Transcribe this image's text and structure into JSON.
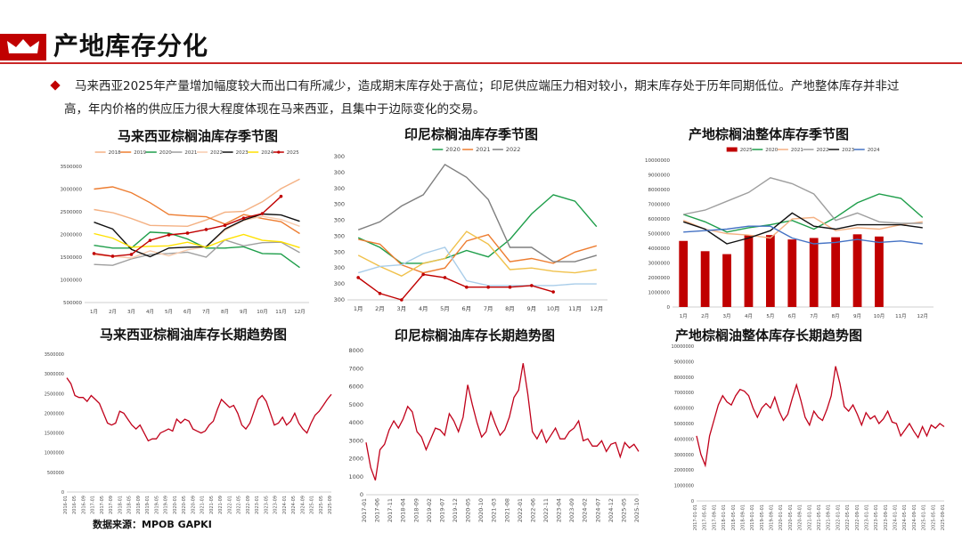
{
  "page": {
    "title": "产地库存分化",
    "summary": "马来西亚2025年产量增加幅度较大而出口有所减少，造成期末库存处于高位；印尼供应端压力相对较小，期末库存处于历年同期低位。产地整体库存并非过高，年内价格的供应压力很大程度体现在马来西亚，且集中于边际变化的交易。",
    "source": "数据来源：MPOB GAPKI"
  },
  "colors": {
    "accent": "#c00000"
  },
  "chart_data": [
    {
      "id": "my-season",
      "type": "line",
      "title": "马来西亚棕榈油库存季节图",
      "categories": [
        "1月",
        "2月",
        "3月",
        "4月",
        "5月",
        "6月",
        "7月",
        "8月",
        "9月",
        "10月",
        "11月",
        "12月"
      ],
      "yticks": [
        "500000",
        "1000000",
        "1500000",
        "2000000",
        "2500000",
        "3000000",
        "3500000"
      ],
      "ylim": [
        500000,
        3500000
      ],
      "legend": "top",
      "series": [
        {
          "name": "2018",
          "color": "#f4b183",
          "values": [
            2550000,
            2480000,
            2350000,
            2200000,
            2190000,
            2180000,
            2320000,
            2490000,
            2510000,
            2720000,
            3010000,
            3220000
          ]
        },
        {
          "name": "2019",
          "color": "#ed7d31",
          "values": [
            3000000,
            3050000,
            2920000,
            2700000,
            2440000,
            2410000,
            2390000,
            2230000,
            2440000,
            2350000,
            2280000,
            2020000
          ]
        },
        {
          "name": "2020",
          "color": "#1e9e4a",
          "values": [
            1760000,
            1700000,
            1700000,
            2050000,
            2030000,
            1900000,
            1700000,
            1700000,
            1730000,
            1580000,
            1570000,
            1270000
          ]
        },
        {
          "name": "2021",
          "color": "#9e9e9e",
          "values": [
            1340000,
            1320000,
            1460000,
            1560000,
            1580000,
            1610000,
            1500000,
            1880000,
            1750000,
            1820000,
            1830000,
            1600000
          ]
        },
        {
          "name": "2022",
          "color": "#f8cbad",
          "values": [
            1550000,
            1520000,
            1480000,
            1640000,
            1530000,
            1660000,
            1730000,
            2090000,
            2310000,
            2400000,
            2330000,
            2180000
          ]
        },
        {
          "name": "2023",
          "color": "#111111",
          "values": [
            2270000,
            2120000,
            1670000,
            1510000,
            1700000,
            1720000,
            1730000,
            2120000,
            2320000,
            2450000,
            2430000,
            2290000
          ]
        },
        {
          "name": "2024",
          "color": "#ffe100",
          "values": [
            2020000,
            1920000,
            1720000,
            1740000,
            1750000,
            1830000,
            1720000,
            1880000,
            2000000,
            1870000,
            1840000,
            1710000
          ]
        },
        {
          "name": "2025",
          "color": "#c00000",
          "marker": true,
          "values": [
            1580000,
            1520000,
            1560000,
            1870000,
            1990000,
            2030000,
            2110000,
            2200000,
            2360000,
            2460000,
            2840000,
            null
          ]
        }
      ]
    },
    {
      "id": "id-season",
      "type": "line",
      "title": "印尼棕榈油库存季节图",
      "categories": [
        "1月",
        "2月",
        "3月",
        "4月",
        "5月",
        "6月",
        "7月",
        "8月",
        "9月",
        "10月",
        "11月",
        "12月"
      ],
      "yticks": [
        "300",
        "300",
        "300",
        "300",
        "300",
        "300",
        "300",
        "300",
        "300",
        "300"
      ],
      "ylim": [
        0,
        9
      ],
      "legend": "top",
      "series": [
        {
          "name": "2020",
          "color": "#1e9e4a",
          "values": [
            3.9,
            3.3,
            2.3,
            2.3,
            2.6,
            3.1,
            2.7,
            3.8,
            5.4,
            6.6,
            6.2,
            4.6
          ]
        },
        {
          "name": "2021",
          "color": "#ed7d31",
          "values": [
            3.8,
            3.5,
            2.2,
            1.7,
            2.0,
            3.7,
            4.1,
            2.4,
            2.6,
            2.3,
            3.0,
            3.4
          ]
        },
        {
          "name": "2022",
          "color": "#7f7f7f",
          "values": [
            4.4,
            4.9,
            5.9,
            6.6,
            8.5,
            7.7,
            6.3,
            3.3,
            3.3,
            2.4,
            2.4,
            2.8
          ]
        },
        {
          "name": "",
          "color": "#f0c14b",
          "values": [
            2.8,
            2.1,
            1.5,
            2.3,
            2.6,
            4.3,
            3.5,
            1.9,
            2.0,
            1.8,
            1.7,
            1.9
          ]
        },
        {
          "name": "",
          "color": "#a9cde9",
          "values": [
            1.7,
            2.1,
            2.2,
            2.9,
            3.3,
            1.2,
            0.9,
            0.9,
            0.9,
            0.9,
            1.0,
            1.0
          ]
        },
        {
          "name": "",
          "color": "#c00000",
          "marker": true,
          "values": [
            1.4,
            0.4,
            0.0,
            1.6,
            1.4,
            0.8,
            0.8,
            0.8,
            0.9,
            0.5,
            null,
            null
          ]
        }
      ]
    },
    {
      "id": "all-season",
      "type": "bar+line",
      "title": "产地棕榈油整体库存季节图",
      "categories": [
        "1月",
        "2月",
        "3月",
        "4月",
        "5月",
        "6月",
        "7月",
        "8月",
        "9月",
        "10月",
        "11月",
        "12月"
      ],
      "yticks": [
        "0",
        "1000000",
        "2000000",
        "3000000",
        "4000000",
        "5000000",
        "6000000",
        "7000000",
        "8000000",
        "9000000",
        "10000000"
      ],
      "ylim": [
        0,
        10000000
      ],
      "legend": "top",
      "bars": {
        "name": "2025",
        "color": "#c00000",
        "values": [
          4500000,
          3800000,
          3600000,
          4900000,
          4900000,
          4600000,
          4700000,
          4750000,
          4950000,
          4800000,
          null,
          null
        ]
      },
      "series": [
        {
          "name": "2020",
          "color": "#1e9e4a",
          "values": [
            6300000,
            5800000,
            5100000,
            5400000,
            5600000,
            5900000,
            5300000,
            6100000,
            7100000,
            7700000,
            7400000,
            6100000
          ]
        },
        {
          "name": "2021",
          "color": "#f4b183",
          "values": [
            5900000,
            5300000,
            5000000,
            4900000,
            4700000,
            6000000,
            6100000,
            5200000,
            5400000,
            5300000,
            5600000,
            5800000
          ]
        },
        {
          "name": "2022",
          "color": "#9e9e9e",
          "values": [
            6300000,
            6600000,
            7200000,
            7800000,
            8800000,
            8400000,
            7700000,
            5900000,
            6400000,
            5800000,
            5700000,
            5700000
          ]
        },
        {
          "name": "2023",
          "color": "#111111",
          "values": [
            5800000,
            5300000,
            4300000,
            4700000,
            5200000,
            6400000,
            5500000,
            5300000,
            5600000,
            5600000,
            5600000,
            5400000
          ]
        },
        {
          "name": "2024",
          "color": "#4472c4",
          "values": [
            5100000,
            5200000,
            5300000,
            5500000,
            5500000,
            4700000,
            4300000,
            4400000,
            4600000,
            4400000,
            4500000,
            4300000
          ]
        }
      ]
    },
    {
      "id": "my-long",
      "type": "line",
      "title": "马来西亚棕榈油库存长期趋势图",
      "yticks": [
        "0",
        "500000",
        "1000000",
        "1500000",
        "2000000",
        "2500000",
        "3000000",
        "3500000"
      ],
      "ylim": [
        0,
        3500000
      ],
      "xticks": [
        "2016-01",
        "2016-05",
        "2016-09",
        "2017-01",
        "2017-05",
        "2017-09",
        "2018-01",
        "2018-05",
        "2018-09",
        "2019-01",
        "2019-05",
        "2019-09",
        "2020-01",
        "2020-05",
        "2020-09",
        "2021-01",
        "2021-05",
        "2021-09",
        "2022-01",
        "2022-05",
        "2022-09",
        "2023-01",
        "2023-05",
        "2023-09",
        "2024-01",
        "2024-05",
        "2024-09",
        "2025-01",
        "2025-05",
        "2025-09"
      ],
      "values": [
        2900000,
        2750000,
        2450000,
        2400000,
        2400000,
        2300000,
        2450000,
        2350000,
        2250000,
        2000000,
        1750000,
        1700000,
        1750000,
        2050000,
        2000000,
        1850000,
        1700000,
        1600000,
        1700000,
        1500000,
        1300000,
        1350000,
        1350000,
        1500000,
        1550000,
        1600000,
        1550000,
        1850000,
        1750000,
        1850000,
        1800000,
        1600000,
        1550000,
        1500000,
        1550000,
        1700000,
        1800000,
        2100000,
        2350000,
        2250000,
        2150000,
        2200000,
        2000000,
        1700000,
        1600000,
        1750000,
        2050000,
        2350000,
        2450000,
        2300000,
        2000000,
        1700000,
        1750000,
        1900000,
        1700000,
        1800000,
        2000000,
        1750000,
        1600000,
        1500000,
        1750000,
        1950000,
        2050000,
        2200000,
        2350000,
        2480000
      ]
    },
    {
      "id": "id-long",
      "type": "line",
      "title": "印尼棕榈油库存长期趋势图",
      "yticks": [
        "0",
        "1000",
        "2000",
        "3000",
        "4000",
        "5000",
        "6000",
        "7000",
        "8000"
      ],
      "ylim": [
        0,
        8000
      ],
      "xticks": [
        "2017-01",
        "2017-06",
        "2017-11",
        "2018-04",
        "2018-09",
        "2019-02",
        "2019-07",
        "2019-12",
        "2020-05",
        "2020-10",
        "2021-03",
        "2021-08",
        "2022-01",
        "2022-06",
        "2022-11",
        "2023-04",
        "2023-09",
        "2024-02",
        "2024-07",
        "2024-12",
        "2025-05",
        "2025-10"
      ],
      "values": [
        2900,
        1500,
        800,
        2500,
        2800,
        3600,
        4100,
        3700,
        4200,
        4900,
        4600,
        3500,
        3200,
        2500,
        3100,
        3700,
        3600,
        3300,
        4500,
        4100,
        3500,
        4300,
        6100,
        5000,
        4000,
        3200,
        3500,
        4600,
        3900,
        3300,
        3600,
        4300,
        5400,
        5800,
        7300,
        5600,
        3500,
        3100,
        3600,
        2900,
        3300,
        3700,
        3100,
        3100,
        3500,
        3700,
        4100,
        3000,
        3100,
        2700,
        2700,
        3000,
        2400,
        2800,
        2900,
        2100,
        2900,
        2600,
        2800,
        2400
      ]
    },
    {
      "id": "all-long",
      "type": "line",
      "title": "产地棕榈油整体库存长期趋势图",
      "yticks": [
        "0",
        "1000000",
        "2000000",
        "3000000",
        "4000000",
        "5000000",
        "6000000",
        "7000000",
        "8000000",
        "9000000",
        "10000000"
      ],
      "ylim": [
        0,
        10000000
      ],
      "xticks": [
        "2017-01-01",
        "2017-05-01",
        "2017-09-01",
        "2018-01-01",
        "2018-05-01",
        "2018-09-01",
        "2019-01-01",
        "2019-05-01",
        "2019-09-01",
        "2020-01-01",
        "2020-05-01",
        "2020-09-01",
        "2021-01-01",
        "2021-05-01",
        "2021-09-01",
        "2022-01-01",
        "2022-05-01",
        "2022-09-01",
        "2023-01-01",
        "2023-05-01",
        "2023-09-01",
        "2024-01-01",
        "2024-05-01",
        "2024-09-01",
        "2025-01-01",
        "2025-05-01",
        "2025-09-01"
      ],
      "values": [
        4200000,
        3000000,
        2300000,
        4200000,
        5200000,
        6200000,
        6800000,
        6400000,
        6200000,
        6800000,
        7200000,
        7100000,
        6800000,
        6000000,
        5400000,
        6000000,
        6300000,
        6000000,
        6700000,
        5800000,
        5200000,
        5600000,
        6600000,
        7500000,
        6500000,
        5400000,
        4900000,
        5800000,
        5400000,
        5200000,
        5900000,
        6800000,
        8700000,
        7600000,
        6100000,
        5800000,
        6200000,
        5600000,
        4900000,
        5700000,
        5300000,
        5500000,
        5000000,
        5300000,
        5800000,
        5100000,
        5000000,
        4200000,
        4600000,
        5000000,
        4500000,
        4100000,
        4800000,
        4200000,
        4900000,
        4700000,
        5000000,
        4800000
      ]
    }
  ]
}
